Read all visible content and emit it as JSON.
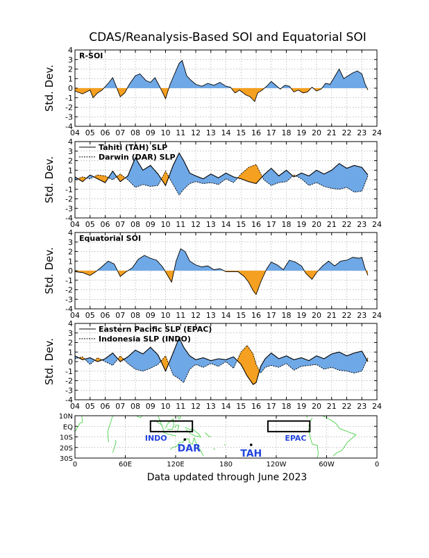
{
  "title": "CDAS/Reanalysis-Based SOI and Equatorial SOI",
  "footer": "Data updated through June 2023",
  "colors": {
    "positive": "#6fa8e6",
    "negative": "#f5a020",
    "coast": "#33cc33",
    "grid": "#aaaaaa",
    "label": "#2244dd"
  },
  "chart_data": [
    {
      "type": "area",
      "title": "R-SOI",
      "ylabel": "Std. Dev.",
      "ylim": [
        -4,
        4
      ],
      "yticks": [
        4,
        3,
        2,
        1,
        0,
        -1,
        -2,
        -3,
        -4
      ],
      "xlim": [
        2004,
        2024
      ],
      "xticks": [
        "04",
        "05",
        "06",
        "07",
        "08",
        "09",
        "10",
        "11",
        "12",
        "13",
        "14",
        "15",
        "16",
        "17",
        "18",
        "19",
        "20",
        "21",
        "22",
        "23",
        "24"
      ],
      "legend": [],
      "series": [
        {
          "x": [
            2004.0,
            2004.5,
            2005.0,
            2005.2,
            2005.5,
            2005.8,
            2006.2,
            2006.5,
            2007.0,
            2007.3,
            2007.6,
            2008.0,
            2008.3,
            2008.7,
            2009.0,
            2009.3,
            2009.6,
            2010.0,
            2010.3,
            2010.6,
            2010.9,
            2011.1,
            2011.4,
            2011.7,
            2012.0,
            2012.4,
            2012.8,
            2013.2,
            2013.6,
            2014.0,
            2014.3,
            2014.6,
            2014.9,
            2015.3,
            2015.6,
            2015.9,
            2016.1,
            2016.4,
            2016.7,
            2017.0,
            2017.3,
            2017.6,
            2017.9,
            2018.2,
            2018.5,
            2018.8,
            2019.1,
            2019.4,
            2019.7,
            2020.0,
            2020.3,
            2020.6,
            2020.9,
            2021.2,
            2021.5,
            2021.8,
            2022.1,
            2022.4,
            2022.7,
            2023.0,
            2023.2,
            2023.4
          ],
          "y": [
            -0.3,
            -0.6,
            -0.2,
            -1.0,
            -0.5,
            -0.2,
            0.5,
            1.1,
            -0.9,
            -0.5,
            0.4,
            1.3,
            1.5,
            0.8,
            0.6,
            1.1,
            0.2,
            -1.1,
            0.4,
            1.5,
            2.6,
            2.9,
            1.3,
            0.8,
            0.4,
            0.2,
            0.5,
            0.3,
            0.6,
            0.2,
            0.1,
            -0.5,
            -0.2,
            -0.7,
            -0.9,
            -1.4,
            -0.5,
            -0.2,
            0.2,
            0.7,
            0.3,
            -0.1,
            0.3,
            0.2,
            -0.4,
            -0.2,
            -0.5,
            -0.4,
            0.1,
            -0.3,
            -0.1,
            0.5,
            0.4,
            1.2,
            2.0,
            1.0,
            1.3,
            1.6,
            1.8,
            1.5,
            0.5,
            -0.2
          ]
        }
      ]
    },
    {
      "type": "area",
      "title": "",
      "ylabel": "Std. Dev.",
      "ylim": [
        -4,
        4
      ],
      "yticks": [
        4,
        3,
        2,
        1,
        0,
        -1,
        -2,
        -3,
        -4
      ],
      "xlim": [
        2004,
        2024
      ],
      "xticks": [
        "04",
        "05",
        "06",
        "07",
        "08",
        "09",
        "10",
        "11",
        "12",
        "13",
        "14",
        "15",
        "16",
        "17",
        "18",
        "19",
        "20",
        "21",
        "22",
        "23",
        "24"
      ],
      "legend": [
        "Tahiti (TAH) SLP",
        "Darwin (DAR) SLP"
      ],
      "series": [
        {
          "name": "Tahiti (TAH) SLP",
          "x": [
            2004.0,
            2004.5,
            2005.0,
            2005.5,
            2006.0,
            2006.5,
            2007.0,
            2007.5,
            2008.0,
            2008.5,
            2009.0,
            2009.5,
            2010.0,
            2010.5,
            2010.9,
            2011.2,
            2011.6,
            2012.0,
            2012.5,
            2013.0,
            2013.5,
            2014.0,
            2014.5,
            2015.0,
            2015.5,
            2016.0,
            2016.5,
            2017.0,
            2017.5,
            2018.0,
            2018.5,
            2019.0,
            2019.5,
            2020.0,
            2020.5,
            2021.0,
            2021.5,
            2022.0,
            2022.5,
            2023.0,
            2023.4
          ],
          "y": [
            0.3,
            -0.2,
            0.5,
            0.1,
            -0.3,
            0.9,
            -0.2,
            0.4,
            2.3,
            1.0,
            1.5,
            0.6,
            -0.6,
            1.5,
            2.8,
            2.0,
            0.7,
            0.4,
            0.1,
            0.6,
            0.2,
            0.7,
            0.3,
            0.1,
            -0.2,
            -0.4,
            0.5,
            1.2,
            0.4,
            1.0,
            0.3,
            0.7,
            0.4,
            1.0,
            0.6,
            1.0,
            1.7,
            1.2,
            1.5,
            1.3,
            0.5
          ]
        },
        {
          "name": "Darwin (DAR) SLP",
          "x": [
            2004.0,
            2004.5,
            2005.0,
            2005.5,
            2006.0,
            2006.5,
            2007.0,
            2007.5,
            2008.0,
            2008.5,
            2009.0,
            2009.5,
            2010.0,
            2010.5,
            2010.9,
            2011.2,
            2011.6,
            2012.0,
            2012.5,
            2013.0,
            2013.5,
            2014.0,
            2014.5,
            2015.0,
            2015.5,
            2016.0,
            2016.5,
            2017.0,
            2017.5,
            2018.0,
            2018.5,
            2019.0,
            2019.5,
            2020.0,
            2020.5,
            2021.0,
            2021.5,
            2022.0,
            2022.5,
            2023.0,
            2023.4
          ],
          "y": [
            0.0,
            0.3,
            0.1,
            0.5,
            0.4,
            0.0,
            0.6,
            0.0,
            -0.8,
            -0.5,
            -0.7,
            -0.6,
            0.9,
            -0.5,
            -1.6,
            -1.0,
            -0.4,
            -0.2,
            -0.4,
            -0.3,
            -0.5,
            0.1,
            -0.3,
            0.6,
            1.3,
            1.6,
            0.0,
            -0.6,
            -0.3,
            -0.2,
            0.5,
            0.1,
            -0.6,
            -0.3,
            -0.7,
            -0.9,
            -1.0,
            -0.8,
            -1.3,
            -1.2,
            0.4
          ]
        }
      ]
    },
    {
      "type": "area",
      "title": "Equatorial SOI",
      "ylabel": "Std. Dev.",
      "ylim": [
        -4,
        4
      ],
      "yticks": [
        4,
        3,
        2,
        1,
        0,
        -1,
        -2,
        -3,
        -4
      ],
      "xlim": [
        2004,
        2024
      ],
      "xticks": [
        "04",
        "05",
        "06",
        "07",
        "08",
        "09",
        "10",
        "11",
        "12",
        "13",
        "14",
        "15",
        "16",
        "17",
        "18",
        "19",
        "20",
        "21",
        "22",
        "23",
        "24"
      ],
      "legend": [],
      "series": [
        {
          "x": [
            2004.0,
            2004.5,
            2005.0,
            2005.3,
            2005.7,
            2006.2,
            2006.6,
            2007.0,
            2007.4,
            2007.8,
            2008.2,
            2008.6,
            2009.0,
            2009.4,
            2009.8,
            2010.1,
            2010.4,
            2010.7,
            2011.0,
            2011.3,
            2011.6,
            2012.0,
            2012.4,
            2012.8,
            2013.2,
            2013.6,
            2014.0,
            2014.4,
            2014.8,
            2015.2,
            2015.5,
            2015.8,
            2016.0,
            2016.3,
            2016.7,
            2017.0,
            2017.4,
            2017.8,
            2018.2,
            2018.6,
            2019.0,
            2019.3,
            2019.7,
            2020.0,
            2020.4,
            2020.8,
            2021.2,
            2021.6,
            2022.0,
            2022.4,
            2022.8,
            2023.0,
            2023.2,
            2023.4
          ],
          "y": [
            -0.1,
            -0.2,
            -0.5,
            -0.2,
            0.3,
            1.0,
            0.7,
            -0.6,
            -0.1,
            0.3,
            1.2,
            1.6,
            1.3,
            1.1,
            0.4,
            -0.4,
            -1.2,
            1.0,
            2.3,
            2.0,
            1.0,
            0.6,
            0.4,
            0.5,
            0.1,
            0.2,
            -0.1,
            -0.1,
            -0.1,
            -0.6,
            -1.2,
            -2.1,
            -2.5,
            -1.2,
            0.2,
            0.9,
            0.6,
            0.1,
            1.1,
            0.9,
            0.5,
            -0.3,
            -0.9,
            -0.2,
            0.5,
            1.0,
            0.5,
            1.0,
            1.1,
            1.4,
            1.3,
            1.4,
            0.3,
            -0.5
          ]
        }
      ]
    },
    {
      "type": "area",
      "title": "",
      "ylabel": "Std. Dev.",
      "ylim": [
        -4,
        4
      ],
      "yticks": [
        4,
        3,
        2,
        1,
        0,
        -1,
        -2,
        -3,
        -4
      ],
      "xlim": [
        2004,
        2024
      ],
      "xticks": [
        "04",
        "05",
        "06",
        "07",
        "08",
        "09",
        "10",
        "11",
        "12",
        "13",
        "14",
        "15",
        "16",
        "17",
        "18",
        "19",
        "20",
        "21",
        "22",
        "23",
        "24"
      ],
      "legend": [
        "Eastern Pacific SLP (EPAC)",
        "Indonesia SLP (INDO)"
      ],
      "series": [
        {
          "name": "Eastern Pacific SLP (EPAC)",
          "x": [
            2004.0,
            2004.5,
            2005.0,
            2005.5,
            2006.0,
            2006.5,
            2007.0,
            2007.5,
            2008.0,
            2008.5,
            2009.0,
            2009.5,
            2010.0,
            2010.5,
            2010.9,
            2011.2,
            2011.6,
            2012.0,
            2012.5,
            2013.0,
            2013.5,
            2014.0,
            2014.5,
            2015.0,
            2015.4,
            2015.8,
            2016.0,
            2016.3,
            2016.6,
            2017.0,
            2017.5,
            2018.0,
            2018.5,
            2019.0,
            2019.5,
            2020.0,
            2020.5,
            2021.0,
            2021.5,
            2022.0,
            2022.5,
            2023.0,
            2023.4
          ],
          "y": [
            0.6,
            0.2,
            0.4,
            0.0,
            0.3,
            0.9,
            0.0,
            0.5,
            1.2,
            0.8,
            1.5,
            0.7,
            -1.0,
            0.9,
            2.5,
            1.5,
            0.6,
            0.2,
            0.4,
            0.1,
            0.3,
            0.2,
            0.5,
            -0.3,
            -1.5,
            -2.4,
            -2.2,
            -0.5,
            0.3,
            0.9,
            0.3,
            0.6,
            0.2,
            0.4,
            0.1,
            0.6,
            0.3,
            0.8,
            1.0,
            0.6,
            0.9,
            1.1,
            0.0
          ]
        },
        {
          "name": "Indonesia SLP (INDO)",
          "x": [
            2004.0,
            2004.5,
            2005.0,
            2005.5,
            2006.0,
            2006.5,
            2007.0,
            2007.5,
            2008.0,
            2008.5,
            2009.0,
            2009.5,
            2010.0,
            2010.5,
            2010.9,
            2011.2,
            2011.6,
            2012.0,
            2012.5,
            2013.0,
            2013.5,
            2014.0,
            2014.5,
            2015.0,
            2015.4,
            2015.8,
            2016.0,
            2016.3,
            2016.6,
            2017.0,
            2017.5,
            2018.0,
            2018.5,
            2019.0,
            2019.5,
            2020.0,
            2020.5,
            2021.0,
            2021.5,
            2022.0,
            2022.5,
            2023.0,
            2023.4
          ],
          "y": [
            0.3,
            0.5,
            -0.3,
            0.4,
            0.0,
            -0.4,
            0.6,
            -0.2,
            -0.8,
            -1.0,
            -0.7,
            -0.3,
            0.6,
            -1.4,
            -1.8,
            -2.2,
            -0.8,
            -0.3,
            -0.6,
            -0.2,
            -0.5,
            0.0,
            -0.7,
            1.0,
            1.7,
            0.8,
            -0.3,
            -1.2,
            -0.6,
            -0.4,
            -0.6,
            -0.2,
            -0.9,
            -0.5,
            -0.4,
            -0.3,
            -0.8,
            -0.6,
            -0.9,
            -1.0,
            -1.2,
            -1.0,
            0.4
          ]
        }
      ]
    }
  ],
  "map": {
    "lat_labels": [
      "10N",
      "EQ",
      "10S",
      "20S",
      "30S"
    ],
    "lon_labels": [
      "0",
      "60E",
      "120E",
      "180",
      "120W",
      "60W",
      "0"
    ],
    "boxes": [
      {
        "name": "INDO",
        "lon": [
          90,
          140
        ],
        "lat": [
          5,
          -5
        ]
      },
      {
        "name": "EPAC",
        "lon": [
          230,
          280
        ],
        "lat": [
          5,
          -5
        ]
      }
    ],
    "stations": [
      {
        "name": "DAR",
        "lon": 131,
        "lat": -12.5
      },
      {
        "name": "TAH",
        "lon": 210,
        "lat": -17.5
      }
    ]
  }
}
